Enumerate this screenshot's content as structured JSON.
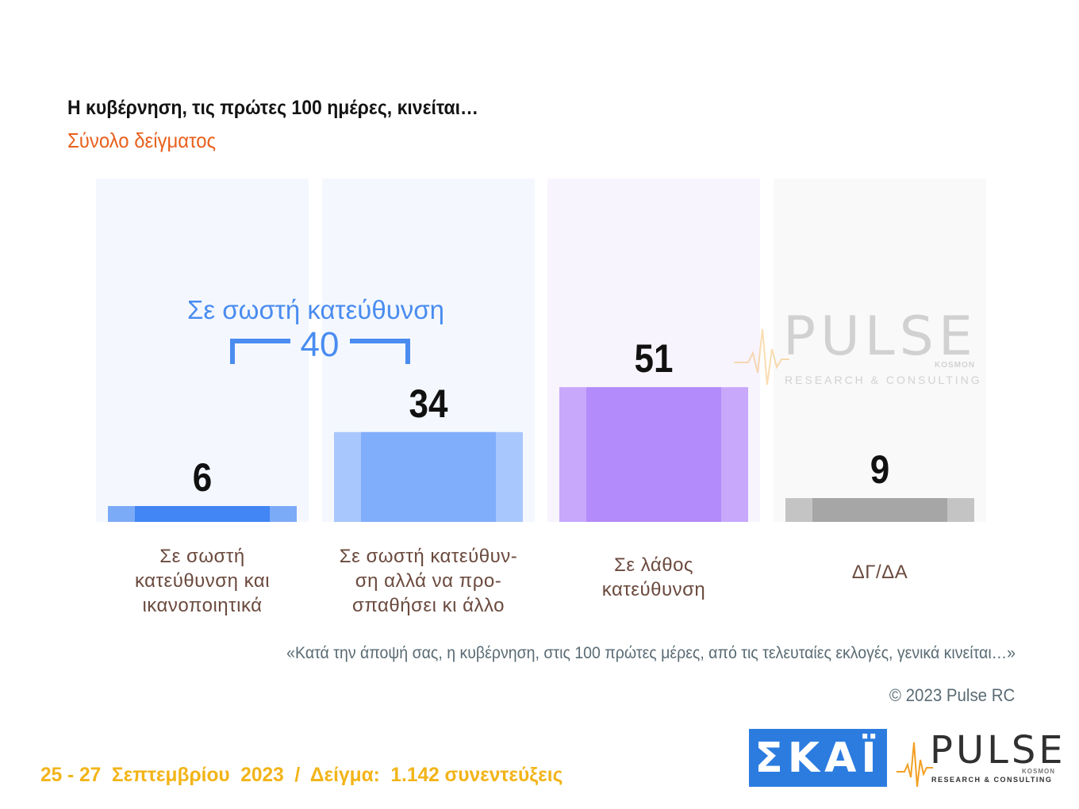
{
  "header": {
    "title": "Η κυβέρνηση, τις πρώτες 100 ημέρες, κινείται…",
    "subtitle": "Σύνολο δείγματος"
  },
  "chart_data": {
    "type": "bar",
    "categories": [
      [
        "Σε σωστή",
        "κατεύθυνση και",
        "ικανοποιητικά"
      ],
      [
        "Σε σωστή κατεύθυν-",
        "ση αλλά να προ-",
        "σπαθήσει κι άλλο"
      ],
      [
        "Σε λάθος",
        "κατεύθυνση"
      ],
      [
        "ΔΓ/ΔΑ"
      ]
    ],
    "values": [
      6,
      34,
      51,
      9
    ],
    "value_labels": [
      "6",
      "34",
      "51",
      "9"
    ],
    "ylim": [
      0,
      100
    ],
    "colors": {
      "bars": [
        "#4285f4",
        "#81aefb",
        "#b38bfa",
        "#a6a6a6"
      ],
      "bar_edges": [
        "#7baaf7",
        "#a8c7fc",
        "#c7a8fb",
        "#c4c4c4"
      ],
      "backgrounds": [
        "#f4f8fe",
        "#f4f8fe",
        "#f8f4fe",
        "#f9f9f9"
      ],
      "annotation": "#4a8cf0"
    },
    "annotation": {
      "label": "Σε σωστή κατεύθυνση",
      "value": "40",
      "spans_categories": [
        0,
        1
      ]
    }
  },
  "watermark": {
    "brand": "PULSE",
    "tagline": "RESEARCH & CONSULTING",
    "sub_brand": "KOSMON"
  },
  "question": "«Κατά την άποψή σας, η κυβέρνηση, στις 100 πρώτες μέρες, από τις τελευταίες εκλογές, γενικά κινείται…»",
  "copyright": "© 2023 Pulse RC",
  "footer": "25 - 27  Σεπτεμβρίου  2023  /  Δείγμα:  1.142 συνεντεύξεις",
  "logos": {
    "skai": "ΣΚΑΪ",
    "pulse": "PULSE",
    "pulse_tagline": "RESEARCH & CONSULTING",
    "pulse_sub_brand": "KOSMON",
    "skai_color": "#2c7ce0"
  }
}
